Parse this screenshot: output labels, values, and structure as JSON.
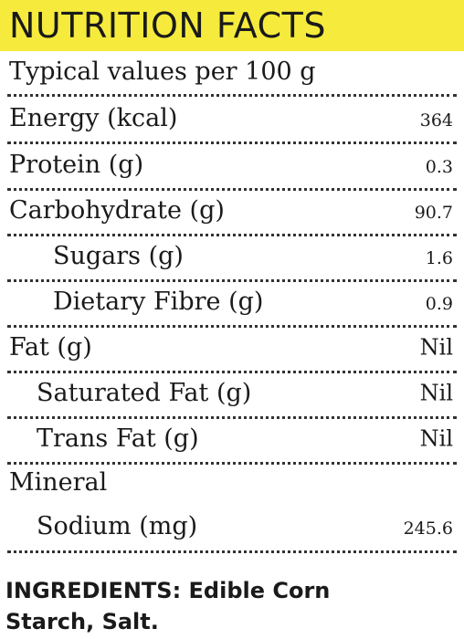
{
  "title": "NUTRITION FACTS",
  "header_color": "#f6eb3c",
  "basis": "Typical values per 100 g",
  "rows": [
    {
      "label": "Energy (kcal)",
      "value": "364"
    },
    {
      "label": "Protein (g)",
      "value": "0.3"
    },
    {
      "label": "Carbohydrate (g)",
      "value": "90.7"
    },
    {
      "label": "Sugars (g)",
      "value": "1.6"
    },
    {
      "label": "Dietary Fibre (g)",
      "value": "0.9"
    },
    {
      "label": "Fat (g)",
      "value": "Nil"
    },
    {
      "label": "Saturated Fat (g)",
      "value": "Nil"
    },
    {
      "label": "Trans Fat (g)",
      "value": "Nil"
    },
    {
      "label": "Mineral",
      "value": ""
    },
    {
      "label": "Sodium (mg)",
      "value": "245.6"
    }
  ],
  "ingredients": {
    "line1": "INGREDIENTS: Edible Corn",
    "line2": "Starch, Salt."
  }
}
